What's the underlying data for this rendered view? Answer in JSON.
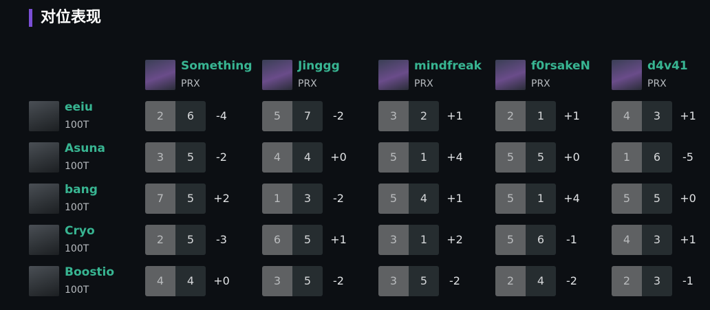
{
  "header": {
    "title": "对位表现"
  },
  "columns": [
    {
      "name": "Something",
      "team": "PRX"
    },
    {
      "name": "Jinggg",
      "team": "PRX"
    },
    {
      "name": "mindfreak",
      "team": "PRX"
    },
    {
      "name": "f0rsakeN",
      "team": "PRX"
    },
    {
      "name": "d4v41",
      "team": "PRX"
    }
  ],
  "rows": [
    {
      "name": "eeiu",
      "team": "100T",
      "cells": [
        [
          2,
          6,
          "-4"
        ],
        [
          5,
          7,
          "-2"
        ],
        [
          3,
          2,
          "+1"
        ],
        [
          2,
          1,
          "+1"
        ],
        [
          4,
          3,
          "+1"
        ]
      ]
    },
    {
      "name": "Asuna",
      "team": "100T",
      "cells": [
        [
          3,
          5,
          "-2"
        ],
        [
          4,
          4,
          "+0"
        ],
        [
          5,
          1,
          "+4"
        ],
        [
          5,
          5,
          "+0"
        ],
        [
          1,
          6,
          "-5"
        ]
      ]
    },
    {
      "name": "bang",
      "team": "100T",
      "cells": [
        [
          7,
          5,
          "+2"
        ],
        [
          1,
          3,
          "-2"
        ],
        [
          5,
          4,
          "+1"
        ],
        [
          5,
          1,
          "+4"
        ],
        [
          5,
          5,
          "+0"
        ]
      ]
    },
    {
      "name": "Cryo",
      "team": "100T",
      "cells": [
        [
          2,
          5,
          "-3"
        ],
        [
          6,
          5,
          "+1"
        ],
        [
          3,
          1,
          "+2"
        ],
        [
          5,
          6,
          "-1"
        ],
        [
          4,
          3,
          "+1"
        ]
      ]
    },
    {
      "name": "Boostio",
      "team": "100T",
      "cells": [
        [
          4,
          4,
          "+0"
        ],
        [
          3,
          5,
          "-2"
        ],
        [
          3,
          5,
          "-2"
        ],
        [
          2,
          4,
          "-2"
        ],
        [
          2,
          3,
          "-1"
        ]
      ]
    }
  ]
}
